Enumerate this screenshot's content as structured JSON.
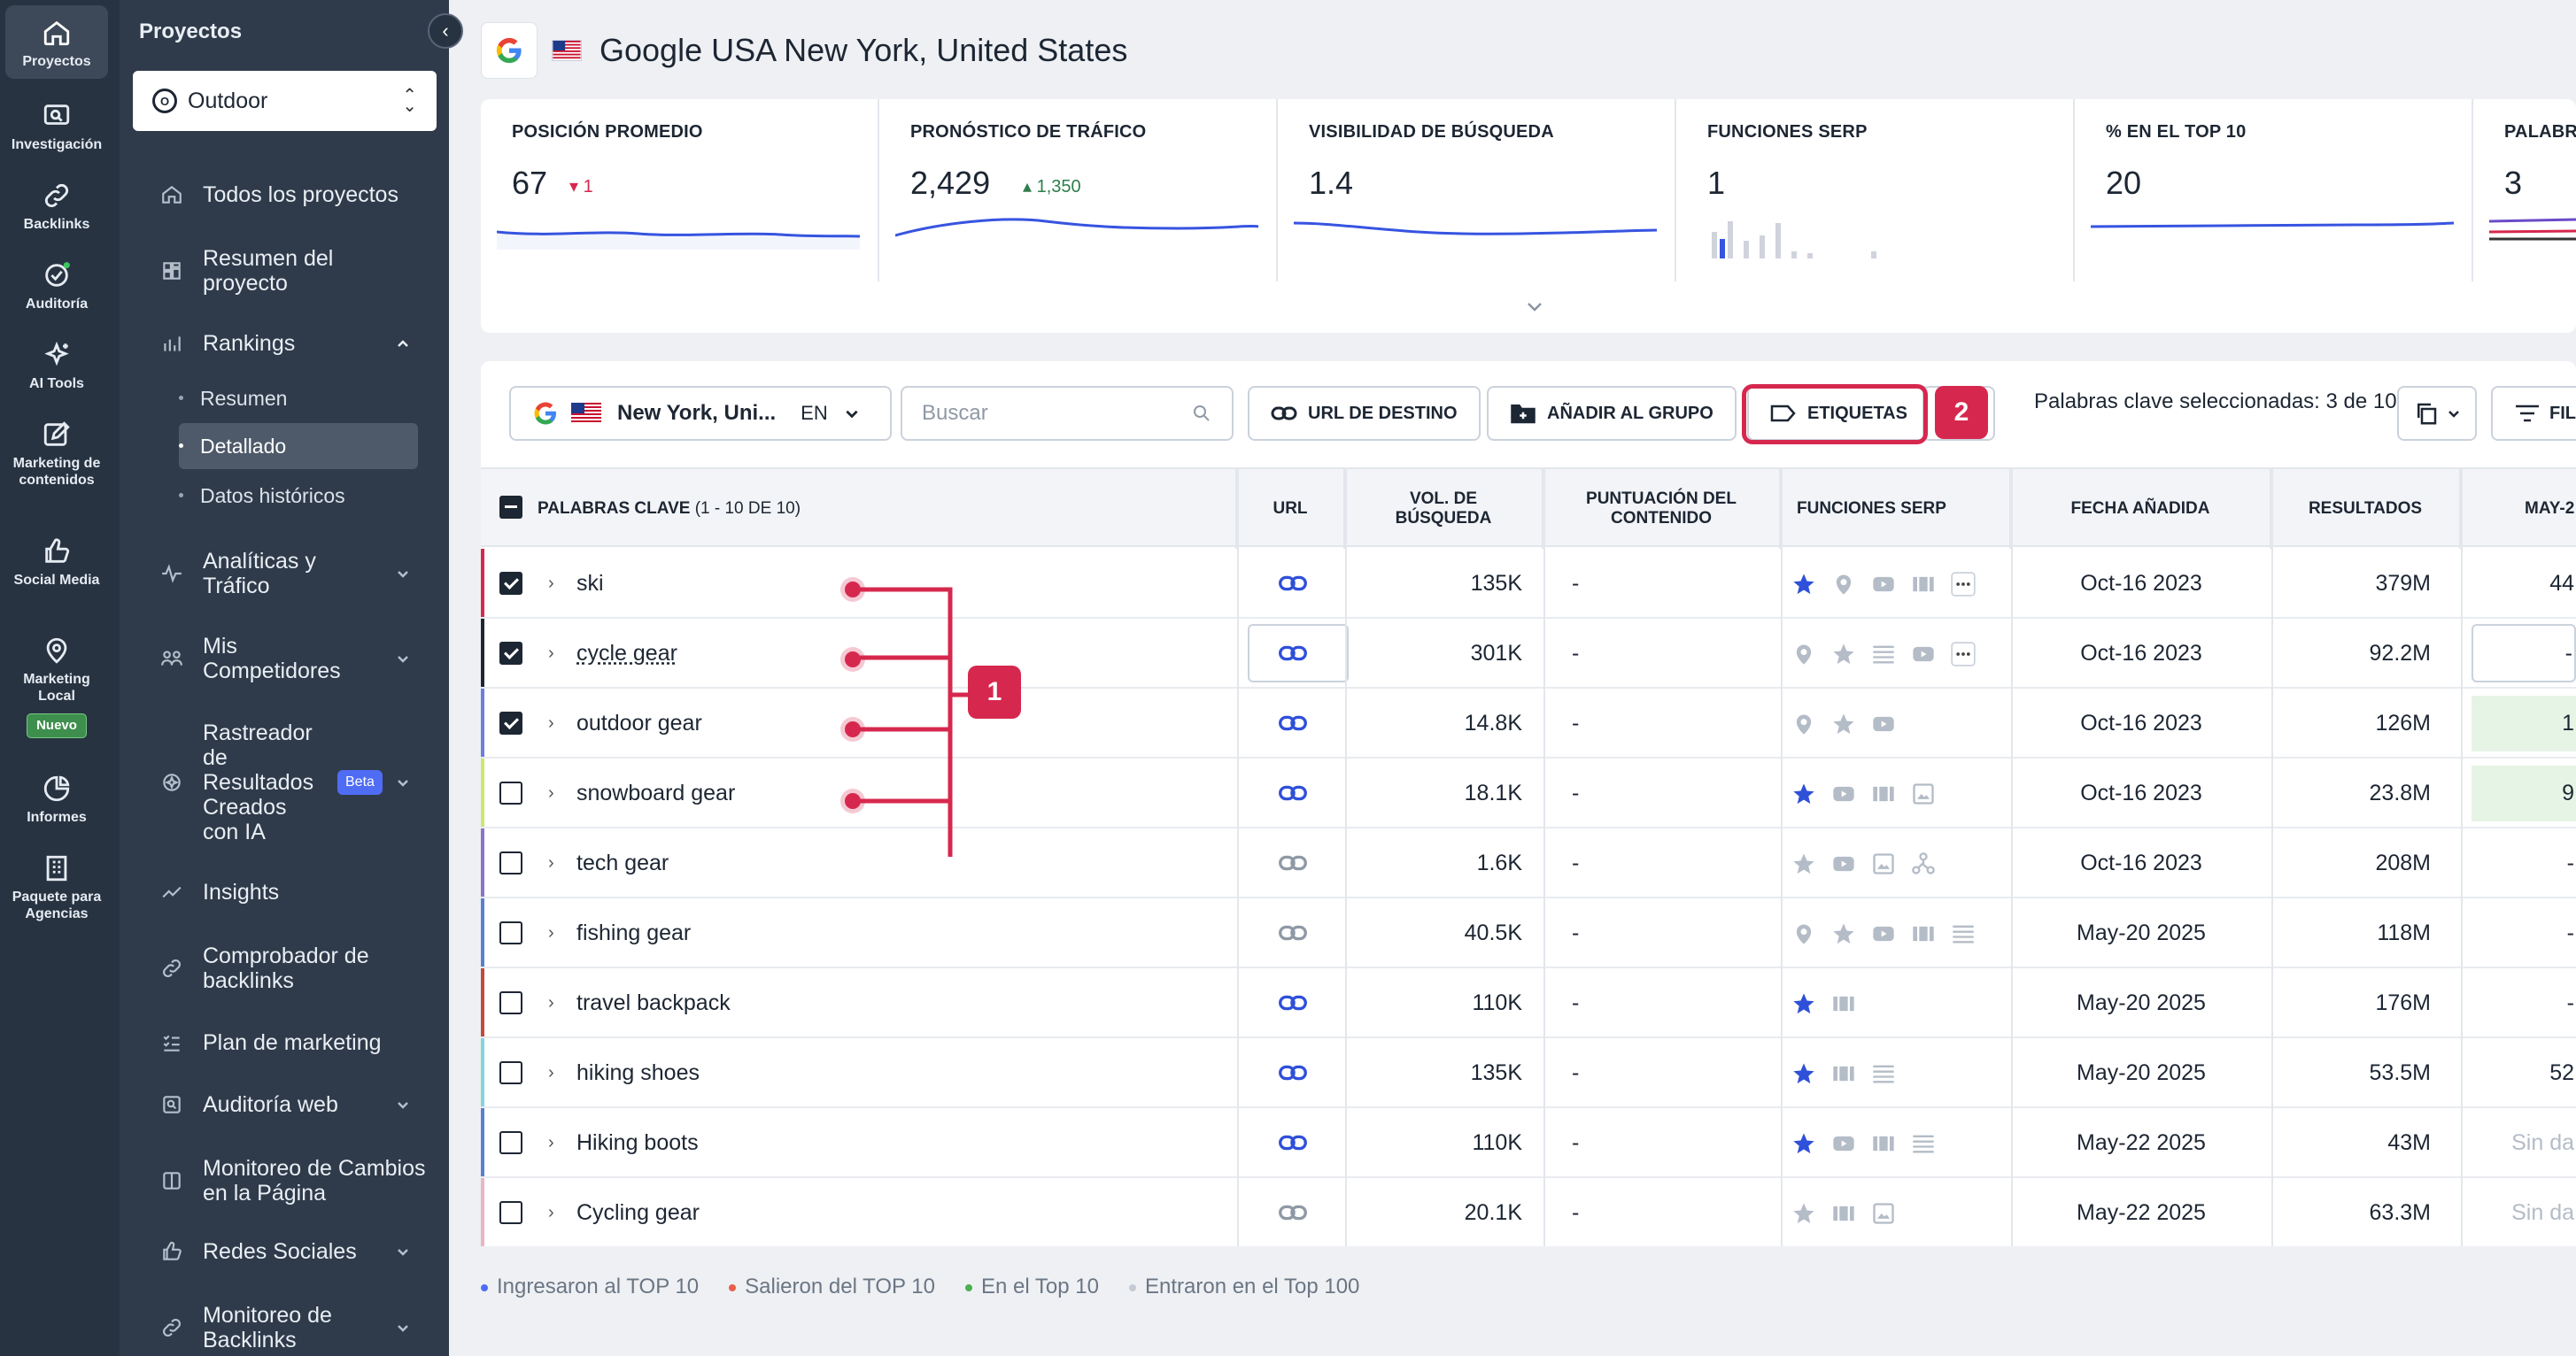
{
  "rail": [
    {
      "label": "Proyectos",
      "icon": "home-icon",
      "active": true
    },
    {
      "label": "Investigación",
      "icon": "research-icon"
    },
    {
      "label": "Backlinks",
      "icon": "link-icon"
    },
    {
      "label": "Auditoría",
      "icon": "audit-icon"
    },
    {
      "label": "AI Tools",
      "icon": "sparkle-icon"
    },
    {
      "label": "Marketing de contenidos",
      "icon": "edit-icon"
    },
    {
      "label": "Social Media",
      "icon": "thumbs-up-icon"
    },
    {
      "label": "Marketing Local",
      "icon": "pin-icon",
      "badge": "Nuevo"
    },
    {
      "label": "Informes",
      "icon": "pie-chart-icon"
    },
    {
      "label": "Paquete para Agencias",
      "icon": "building-icon"
    }
  ],
  "sidebar": {
    "title": "Proyectos",
    "project": "Outdoor",
    "items": [
      {
        "label": "Todos los proyectos"
      },
      {
        "label": "Resumen del proyecto"
      },
      {
        "label": "Rankings"
      },
      {
        "label": "Analíticas y Tráfico"
      },
      {
        "label": "Mis Competidores"
      },
      {
        "label": "Rastreador de Resultados Creados con IA",
        "badge": "Beta"
      },
      {
        "label": "Insights"
      },
      {
        "label": "Comprobador de backlinks"
      },
      {
        "label": "Plan de marketing"
      },
      {
        "label": "Auditoría web"
      },
      {
        "label": "Monitoreo de Cambios en la Página"
      },
      {
        "label": "Redes Sociales"
      },
      {
        "label": "Monitoreo de Backlinks"
      }
    ],
    "rankings_sub": [
      "Resumen",
      "Detallado",
      "Datos históricos"
    ]
  },
  "header": {
    "title": "Google USA New York, United States"
  },
  "metrics": [
    {
      "label": "POSICIÓN PROMEDIO",
      "value": "67",
      "delta": "1",
      "delta_dir": "down",
      "delta_color": "#d6284e"
    },
    {
      "label": "PRONÓSTICO DE TRÁFICO",
      "value": "2,429",
      "delta": "1,350",
      "delta_dir": "up",
      "delta_color": "#2e8b57"
    },
    {
      "label": "VISIBILIDAD DE BÚSQUEDA",
      "value": "1.4"
    },
    {
      "label": "FUNCIONES SERP",
      "value": "1"
    },
    {
      "label": "% EN EL TOP 10",
      "value": "20"
    },
    {
      "label": "PALABRA",
      "value": "3"
    }
  ],
  "toolbar": {
    "location": "New York, Uni...",
    "lang": "EN",
    "search_placeholder": "Buscar",
    "url_btn": "URL DE DESTINO",
    "group_btn": "AÑADIR AL GRUPO",
    "tags_btn": "ETIQUETAS",
    "selected_text": "Palabras clave seleccionadas: 3 de 10",
    "filter_btn": "FIL"
  },
  "callouts": {
    "one": "1",
    "two": "2"
  },
  "table": {
    "headers": {
      "keywords": "PALABRAS CLAVE",
      "keywords_count": "(1 - 10 DE 10)",
      "url": "URL",
      "volume": "VOL. DE BÚSQUEDA",
      "content_score": "PUNTUACIÓN DEL CONTENIDO",
      "serp": "FUNCIONES SERP",
      "date": "FECHA AÑADIDA",
      "results": "RESULTADOS",
      "may": "MAY-2"
    },
    "rows": [
      {
        "keyword": "ski",
        "checked": true,
        "volume": "135K",
        "score": "-",
        "serp": [
          "star-filled",
          "pin",
          "video",
          "carousel",
          "more"
        ],
        "date": "Oct-16 2023",
        "results": "379M",
        "may": "44",
        "bar": "#d6284e"
      },
      {
        "keyword": "cycle gear",
        "checked": true,
        "volume": "301K",
        "score": "-",
        "serp": [
          "pin",
          "star",
          "list",
          "video",
          "more"
        ],
        "date": "Oct-16 2023",
        "results": "92.2M",
        "may": "-",
        "bar": "#1d2633"
      },
      {
        "keyword": "outdoor gear",
        "checked": true,
        "volume": "14.8K",
        "score": "-",
        "serp": [
          "pin",
          "star",
          "video"
        ],
        "date": "Oct-16 2023",
        "results": "126M",
        "may": "1",
        "bar": "#6a7fe0",
        "may_bg": "#e6f4e6"
      },
      {
        "keyword": "snowboard gear",
        "checked": false,
        "volume": "18.1K",
        "score": "-",
        "serp": [
          "star-filled",
          "video",
          "carousel",
          "image"
        ],
        "date": "Oct-16 2023",
        "results": "23.8M",
        "may": "9",
        "bar": "#cde66b",
        "may_bg": "#e6f4e6"
      },
      {
        "keyword": "tech gear",
        "checked": false,
        "volume": "1.6K",
        "score": "-",
        "serp": [
          "star",
          "video",
          "image",
          "network"
        ],
        "date": "Oct-16 2023",
        "results": "208M",
        "may": "-",
        "bar": "#8a73c9"
      },
      {
        "keyword": "fishing gear",
        "checked": false,
        "volume": "40.5K",
        "score": "-",
        "serp": [
          "pin",
          "star",
          "video",
          "carousel",
          "list"
        ],
        "date": "May-20 2025",
        "results": "118M",
        "may": "-",
        "bar": "#5a7fcf"
      },
      {
        "keyword": "travel backpack",
        "checked": false,
        "volume": "110K",
        "score": "-",
        "serp": [
          "star-filled",
          "carousel"
        ],
        "date": "May-20 2025",
        "results": "176M",
        "may": "-",
        "bar": "#c24a3a"
      },
      {
        "keyword": "hiking shoes",
        "checked": false,
        "volume": "135K",
        "score": "-",
        "serp": [
          "star-filled",
          "carousel",
          "list"
        ],
        "date": "May-20 2025",
        "results": "53.5M",
        "may": "52",
        "bar": "#7fd6e0"
      },
      {
        "keyword": "Hiking boots",
        "checked": false,
        "volume": "110K",
        "score": "-",
        "serp": [
          "star-filled",
          "video",
          "carousel",
          "list"
        ],
        "date": "May-22 2025",
        "results": "43M",
        "may": "Sin da",
        "bar": "#5a7fcf"
      },
      {
        "keyword": "Cycling gear",
        "checked": false,
        "volume": "20.1K",
        "score": "-",
        "serp": [
          "star",
          "carousel",
          "image"
        ],
        "date": "May-22 2025",
        "results": "63.3M",
        "may": "Sin da",
        "bar": "#e8b6c3"
      }
    ]
  },
  "legend": [
    {
      "label": "Ingresaron al TOP 10",
      "color": "#4f6cf5"
    },
    {
      "label": "Salieron del TOP 10",
      "color": "#e8604a"
    },
    {
      "label": "En el Top 10",
      "color": "#4caf50"
    },
    {
      "label": "Entraron en el Top 100",
      "color": "#c5cbd3"
    }
  ]
}
